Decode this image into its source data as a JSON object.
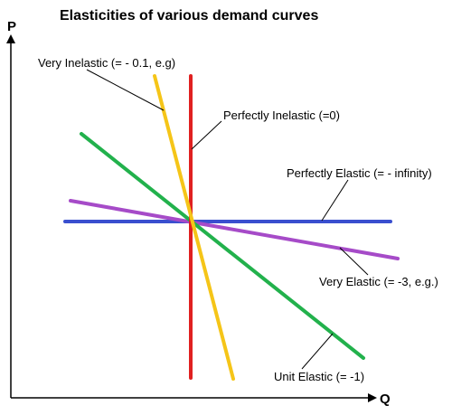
{
  "title": "Elasticities of various demand curves",
  "axes": {
    "y_label": "P",
    "x_label": "Q"
  },
  "curves": [
    {
      "label": "Very Inelastic (= - 0.1, e.g)",
      "color": "#f5c518"
    },
    {
      "label": "Perfectly Inelastic (=0)",
      "color": "#e02020"
    },
    {
      "label": "Perfectly Elastic (= - infinity)",
      "color": "#3a4fcf"
    },
    {
      "label": "Very Elastic (= -3, e.g.)",
      "color": "#a64bc8"
    },
    {
      "label": "Unit Elastic (= -1)",
      "color": "#22b14c"
    }
  ]
}
